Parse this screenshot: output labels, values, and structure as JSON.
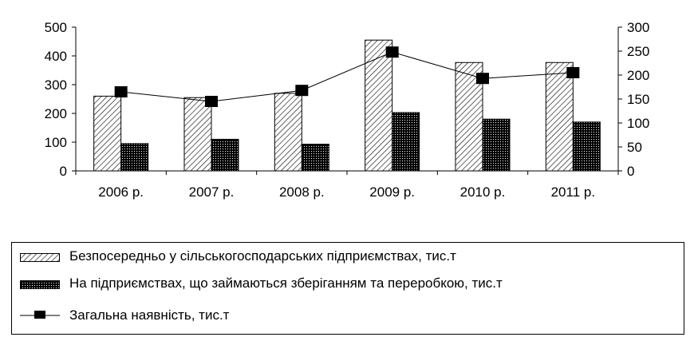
{
  "chart_data": {
    "type": "bar",
    "categories": [
      "2006 р.",
      "2007 р.",
      "2008 р.",
      "2009 р.",
      "2010 р.",
      "2011 р."
    ],
    "series": [
      {
        "name": "Безпосередньо у сільськогосподарських підприємствах, тис.т",
        "kind": "bar",
        "axis": "left",
        "pattern": "diagonal-hatch",
        "values": [
          260,
          255,
          270,
          455,
          377,
          377
        ]
      },
      {
        "name": "На підприємствах, що займаються зберіганням та переробкою, тис.т",
        "kind": "bar",
        "axis": "left",
        "pattern": "dense-dots",
        "values": [
          95,
          110,
          93,
          203,
          180,
          170
        ]
      },
      {
        "name": "Загальна наявність, тис.т",
        "kind": "line",
        "axis": "right",
        "marker": "square",
        "values": [
          165,
          145,
          168,
          248,
          193,
          205
        ]
      }
    ],
    "y_left": {
      "min": 0,
      "max": 500,
      "ticks": [
        "0",
        "100",
        "200",
        "300",
        "400",
        "500"
      ]
    },
    "y_right": {
      "min": 0,
      "max": 300,
      "ticks": [
        "0",
        "50",
        "100",
        "150",
        "200",
        "250",
        "300"
      ]
    },
    "grid": false,
    "legend_position": "bottom"
  }
}
